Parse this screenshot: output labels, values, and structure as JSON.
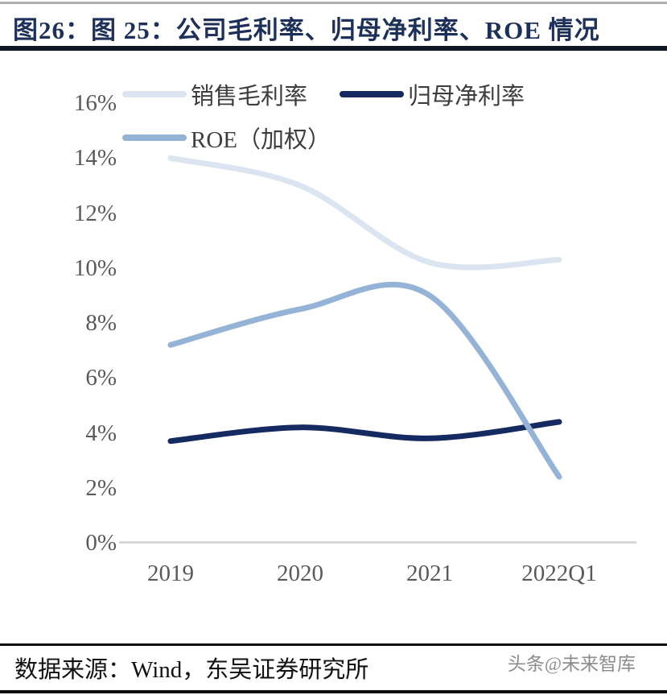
{
  "page": {
    "title": "图26：图 25：公司毛利率、归母净利率、ROE 情况",
    "footer": {
      "source": "数据来源：Wind，东吴证券研究所",
      "watermark": "头条@未来智库"
    }
  },
  "chart_data": {
    "type": "line",
    "title": "公司毛利率、归母净利率、ROE 情况",
    "categories": [
      "2019",
      "2020",
      "2021",
      "2022Q1"
    ],
    "series": [
      {
        "name": "销售毛利率",
        "color": "#dbe5f1",
        "values": [
          14.0,
          13.0,
          10.2,
          10.3
        ]
      },
      {
        "name": "归母净利率",
        "color": "#152a60",
        "values": [
          3.7,
          4.2,
          3.8,
          4.4
        ]
      },
      {
        "name": "ROE（加权）",
        "color": "#95b3d7",
        "values": [
          7.2,
          8.5,
          9.0,
          2.4
        ]
      }
    ],
    "y_ticks": [
      "16%",
      "14%",
      "12%",
      "10%",
      "8%",
      "6%",
      "4%",
      "2%",
      "0%"
    ],
    "ylim": [
      0,
      16
    ],
    "y_tick_step": 2,
    "unit": "%",
    "grid": false,
    "smooth": true,
    "legend_position": "top-left",
    "axis_color": "#d0d0d0",
    "tick_text_color": "#595959",
    "line_width": 7
  }
}
